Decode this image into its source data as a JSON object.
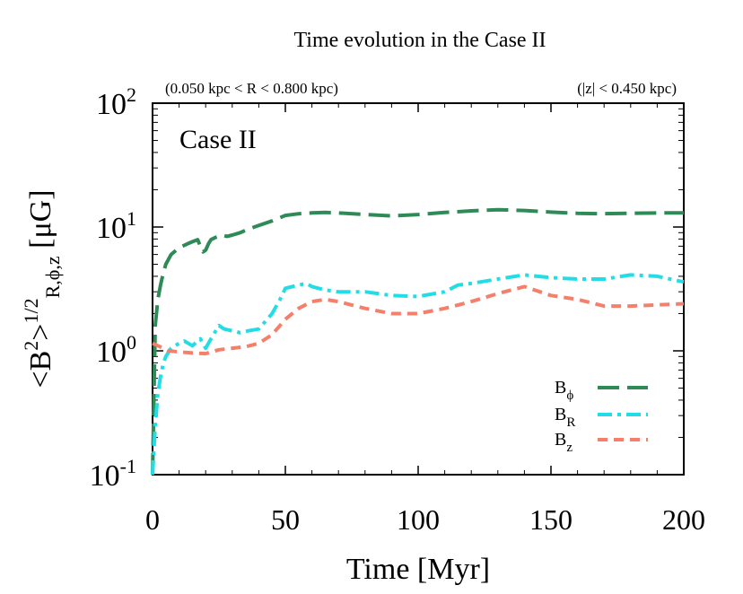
{
  "chart_data": {
    "type": "line",
    "title": "Time evolution  in the Case II",
    "subtitle_left": "(0.050 kpc < R < 0.800 kpc)",
    "subtitle_right": "(|z| < 0.450 kpc)",
    "annotation": "Case II",
    "xlabel": "Time [Myr]",
    "ylabel_parts": {
      "open": "<B",
      "sup1": "2",
      "mid": ">",
      "sup2": "1/2",
      "sub": "R,ϕ,z",
      "unit": " [μG]"
    },
    "xlim": [
      0,
      200
    ],
    "ylim_log10": [
      -1,
      2
    ],
    "y_scale": "log",
    "x_ticks": [
      0,
      50,
      100,
      150,
      200
    ],
    "x_tick_labels": [
      "0",
      "50",
      "100",
      "150",
      "200"
    ],
    "y_ticks_exp": [
      -1,
      0,
      1,
      2
    ],
    "y_tick_base": "10",
    "y_tick_exponents": [
      "-1",
      "0",
      "1",
      "2"
    ],
    "legend_position": "bottom-right",
    "series": [
      {
        "name": "B_phi",
        "label_main": "B",
        "label_sub": "ϕ",
        "color": "#2e8b57",
        "dash": "long-dash",
        "x": [
          0,
          1,
          2,
          3,
          4,
          5,
          7,
          10,
          13,
          15,
          17,
          18,
          19,
          20,
          21,
          22,
          24,
          26,
          28,
          30,
          33,
          36,
          40,
          45,
          50,
          55,
          60,
          65,
          70,
          80,
          90,
          100,
          110,
          120,
          130,
          140,
          150,
          160,
          170,
          180,
          190,
          200
        ],
        "y": [
          0.1,
          1.6,
          2.6,
          3.4,
          4.2,
          5.0,
          6.0,
          6.8,
          7.3,
          7.6,
          7.9,
          7.0,
          6.3,
          6.5,
          7.3,
          7.9,
          8.3,
          8.6,
          8.4,
          8.6,
          9.0,
          9.6,
          10.3,
          11.2,
          12.4,
          12.8,
          13.0,
          13.1,
          13.0,
          12.6,
          12.3,
          12.6,
          13.1,
          13.5,
          13.8,
          13.6,
          13.2,
          12.9,
          12.8,
          12.9,
          13.0,
          13.0
        ]
      },
      {
        "name": "B_R",
        "label_main": "B",
        "label_sub": "R",
        "color": "#22dde6",
        "dash": "dash-dot",
        "x": [
          0,
          1,
          2,
          3,
          4,
          5,
          7,
          10,
          12,
          15,
          18,
          20,
          22,
          25,
          27,
          30,
          33,
          36,
          40,
          45,
          48,
          50,
          55,
          58,
          60,
          65,
          70,
          80,
          90,
          100,
          110,
          115,
          120,
          130,
          140,
          150,
          160,
          170,
          180,
          190,
          200
        ],
        "y": [
          0.1,
          0.25,
          0.45,
          0.62,
          0.78,
          0.9,
          1.05,
          1.15,
          1.2,
          1.1,
          1.25,
          1.05,
          1.25,
          1.6,
          1.5,
          1.45,
          1.4,
          1.45,
          1.5,
          2.0,
          2.6,
          3.2,
          3.4,
          3.5,
          3.3,
          3.1,
          3.0,
          3.0,
          2.8,
          2.75,
          3.0,
          3.4,
          3.5,
          3.8,
          4.1,
          3.9,
          3.8,
          3.8,
          4.1,
          4.0,
          3.6
        ]
      },
      {
        "name": "B_z",
        "label_main": "B",
        "label_sub": "z",
        "color": "#f47f6b",
        "dash": "short-dash",
        "x": [
          0,
          2,
          4,
          6,
          10,
          15,
          20,
          25,
          30,
          35,
          40,
          45,
          50,
          55,
          60,
          65,
          70,
          80,
          90,
          100,
          110,
          120,
          130,
          140,
          150,
          160,
          170,
          180,
          190,
          200
        ],
        "y": [
          1.15,
          1.1,
          1.05,
          1.0,
          0.98,
          0.96,
          0.95,
          1.02,
          1.05,
          1.08,
          1.15,
          1.35,
          1.8,
          2.2,
          2.5,
          2.6,
          2.5,
          2.2,
          2.0,
          2.0,
          2.2,
          2.5,
          2.9,
          3.3,
          2.8,
          2.6,
          2.3,
          2.3,
          2.35,
          2.4
        ]
      }
    ]
  }
}
